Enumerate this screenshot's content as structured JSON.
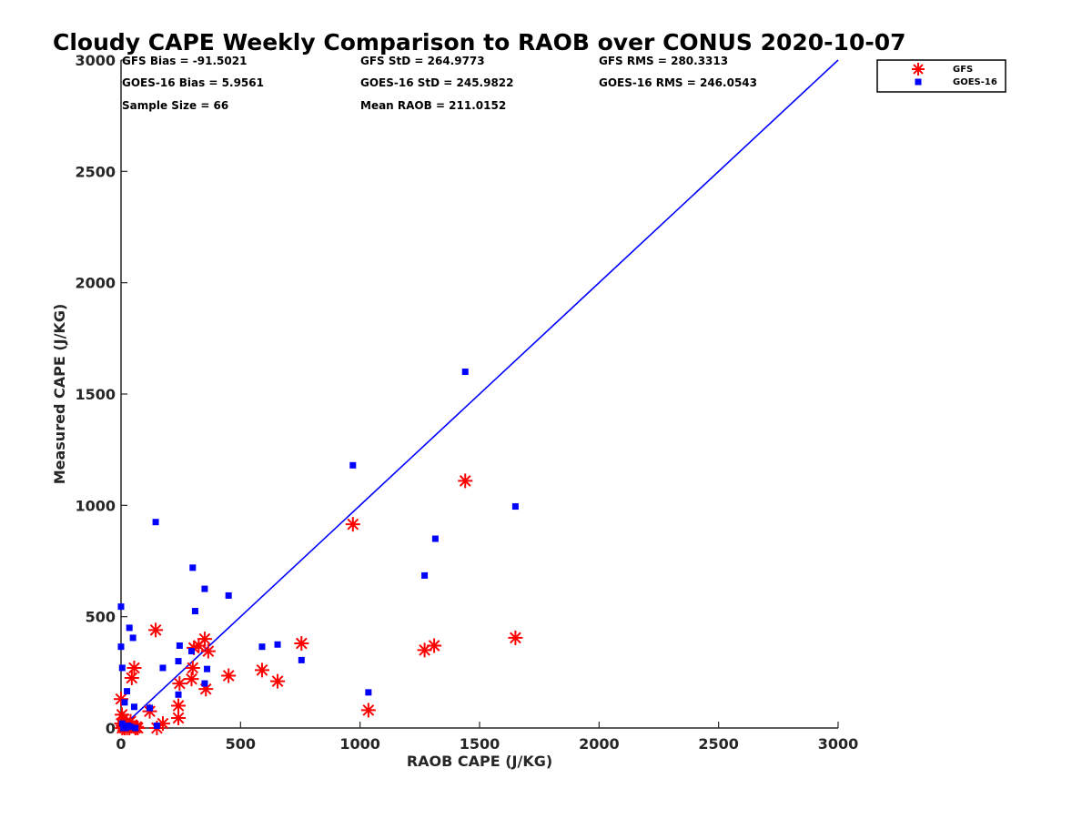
{
  "chart_data": {
    "type": "scatter",
    "title": "Cloudy CAPE Weekly Comparison to RAOB over CONUS 2020-10-07",
    "xlabel": "RAOB CAPE (J/KG)",
    "ylabel": "Measured CAPE (J/KG)",
    "xlim": [
      0,
      3000
    ],
    "ylim": [
      0,
      3000
    ],
    "xticks": [
      0,
      500,
      1000,
      1500,
      2000,
      2500,
      3000
    ],
    "yticks": [
      0,
      500,
      1000,
      1500,
      2000,
      2500,
      3000
    ],
    "grid": false,
    "legend_position": "top-right (outside plot area)",
    "reference_line": {
      "x": [
        0,
        3000
      ],
      "y": [
        0,
        3000
      ],
      "color": "#0000ff"
    },
    "stats": [
      "GFS Bias = -91.5021",
      "GFS StD = 264.9773",
      "GFS RMS = 280.3313",
      "GOES-16 Bias = 5.9561",
      "GOES-16 StD = 245.9822",
      "GOES-16 RMS = 246.0543",
      "Sample Size = 66",
      "Mean RAOB = 211.0152"
    ],
    "series": [
      {
        "name": "GFS",
        "marker": "asterisk",
        "color": "#ff0000",
        "points": [
          [
            0,
            130
          ],
          [
            2,
            20
          ],
          [
            4,
            60
          ],
          [
            5,
            0
          ],
          [
            8,
            10
          ],
          [
            10,
            40
          ],
          [
            12,
            5
          ],
          [
            15,
            0
          ],
          [
            20,
            25
          ],
          [
            25,
            0
          ],
          [
            30,
            10
          ],
          [
            35,
            0
          ],
          [
            40,
            30
          ],
          [
            45,
            225
          ],
          [
            55,
            270
          ],
          [
            60,
            0
          ],
          [
            65,
            5
          ],
          [
            70,
            0
          ],
          [
            120,
            75
          ],
          [
            150,
            0
          ],
          [
            145,
            440
          ],
          [
            175,
            20
          ],
          [
            240,
            45
          ],
          [
            240,
            100
          ],
          [
            245,
            200
          ],
          [
            295,
            220
          ],
          [
            300,
            270
          ],
          [
            305,
            360
          ],
          [
            325,
            370
          ],
          [
            350,
            400
          ],
          [
            355,
            175
          ],
          [
            365,
            345
          ],
          [
            450,
            235
          ],
          [
            590,
            260
          ],
          [
            655,
            210
          ],
          [
            755,
            380
          ],
          [
            970,
            915
          ],
          [
            1035,
            80
          ],
          [
            1270,
            350
          ],
          [
            1310,
            370
          ],
          [
            1440,
            1110
          ],
          [
            1650,
            405
          ]
        ]
      },
      {
        "name": "GOES-16",
        "marker": "square",
        "color": "#0000ff",
        "points": [
          [
            0,
            545
          ],
          [
            0,
            365
          ],
          [
            5,
            270
          ],
          [
            5,
            20
          ],
          [
            10,
            0
          ],
          [
            15,
            115
          ],
          [
            20,
            0
          ],
          [
            25,
            165
          ],
          [
            30,
            10
          ],
          [
            35,
            450
          ],
          [
            40,
            5
          ],
          [
            50,
            405
          ],
          [
            55,
            95
          ],
          [
            60,
            0
          ],
          [
            120,
            90
          ],
          [
            145,
            925
          ],
          [
            150,
            10
          ],
          [
            175,
            270
          ],
          [
            240,
            150
          ],
          [
            240,
            300
          ],
          [
            245,
            370
          ],
          [
            295,
            345
          ],
          [
            300,
            720
          ],
          [
            310,
            525
          ],
          [
            350,
            625
          ],
          [
            350,
            200
          ],
          [
            360,
            265
          ],
          [
            450,
            595
          ],
          [
            590,
            365
          ],
          [
            655,
            375
          ],
          [
            755,
            305
          ],
          [
            970,
            1180
          ],
          [
            1035,
            160
          ],
          [
            1270,
            685
          ],
          [
            1315,
            850
          ],
          [
            1440,
            1600
          ],
          [
            1650,
            995
          ]
        ]
      }
    ]
  }
}
